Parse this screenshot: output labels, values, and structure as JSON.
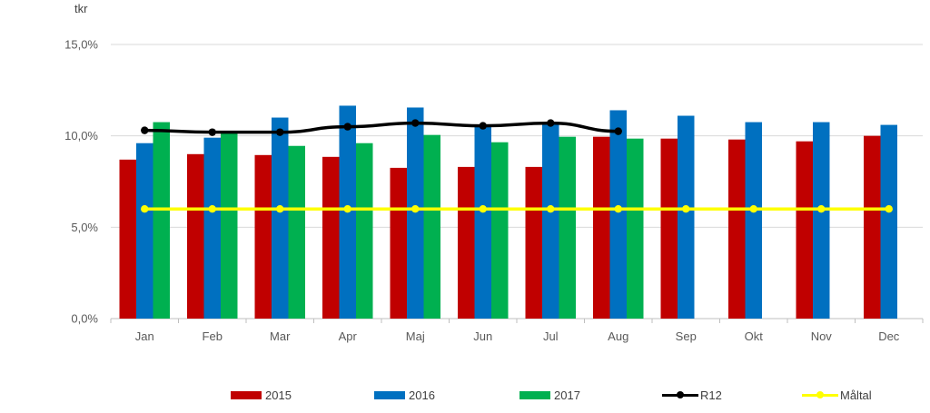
{
  "chart_data": {
    "type": "bar",
    "unit_label": "tkr",
    "categories": [
      "Jan",
      "Feb",
      "Mar",
      "Apr",
      "Maj",
      "Jun",
      "Jul",
      "Aug",
      "Sep",
      "Okt",
      "Nov",
      "Dec"
    ],
    "yticks": [
      "0,0%",
      "5,0%",
      "10,0%",
      "15,0%"
    ],
    "ylim": [
      0,
      15
    ],
    "grid": true,
    "legend_position": "bottom",
    "series": [
      {
        "name": "2015",
        "kind": "bar",
        "color": "#C00000",
        "values": [
          8.7,
          9.0,
          8.95,
          8.85,
          8.25,
          8.3,
          8.3,
          9.95,
          9.85,
          9.8,
          9.7,
          10.0
        ]
      },
      {
        "name": "2016",
        "kind": "bar",
        "color": "#0070C0",
        "values": [
          9.6,
          9.9,
          11.0,
          11.65,
          11.55,
          10.6,
          10.7,
          11.4,
          11.1,
          10.75,
          10.75,
          10.6
        ]
      },
      {
        "name": "2017",
        "kind": "bar",
        "color": "#00B050",
        "values": [
          10.75,
          10.2,
          9.45,
          9.6,
          10.05,
          9.65,
          9.95,
          9.85,
          null,
          null,
          null,
          null
        ]
      },
      {
        "name": "R12",
        "kind": "line",
        "color": "#000000",
        "values": [
          10.3,
          10.2,
          10.2,
          10.5,
          10.7,
          10.55,
          10.7,
          10.25,
          null,
          null,
          null,
          null
        ]
      },
      {
        "name": "Måltal",
        "kind": "line",
        "color": "#FFFF00",
        "values": [
          6.0,
          6.0,
          6.0,
          6.0,
          6.0,
          6.0,
          6.0,
          6.0,
          6.0,
          6.0,
          6.0,
          6.0
        ]
      }
    ]
  }
}
